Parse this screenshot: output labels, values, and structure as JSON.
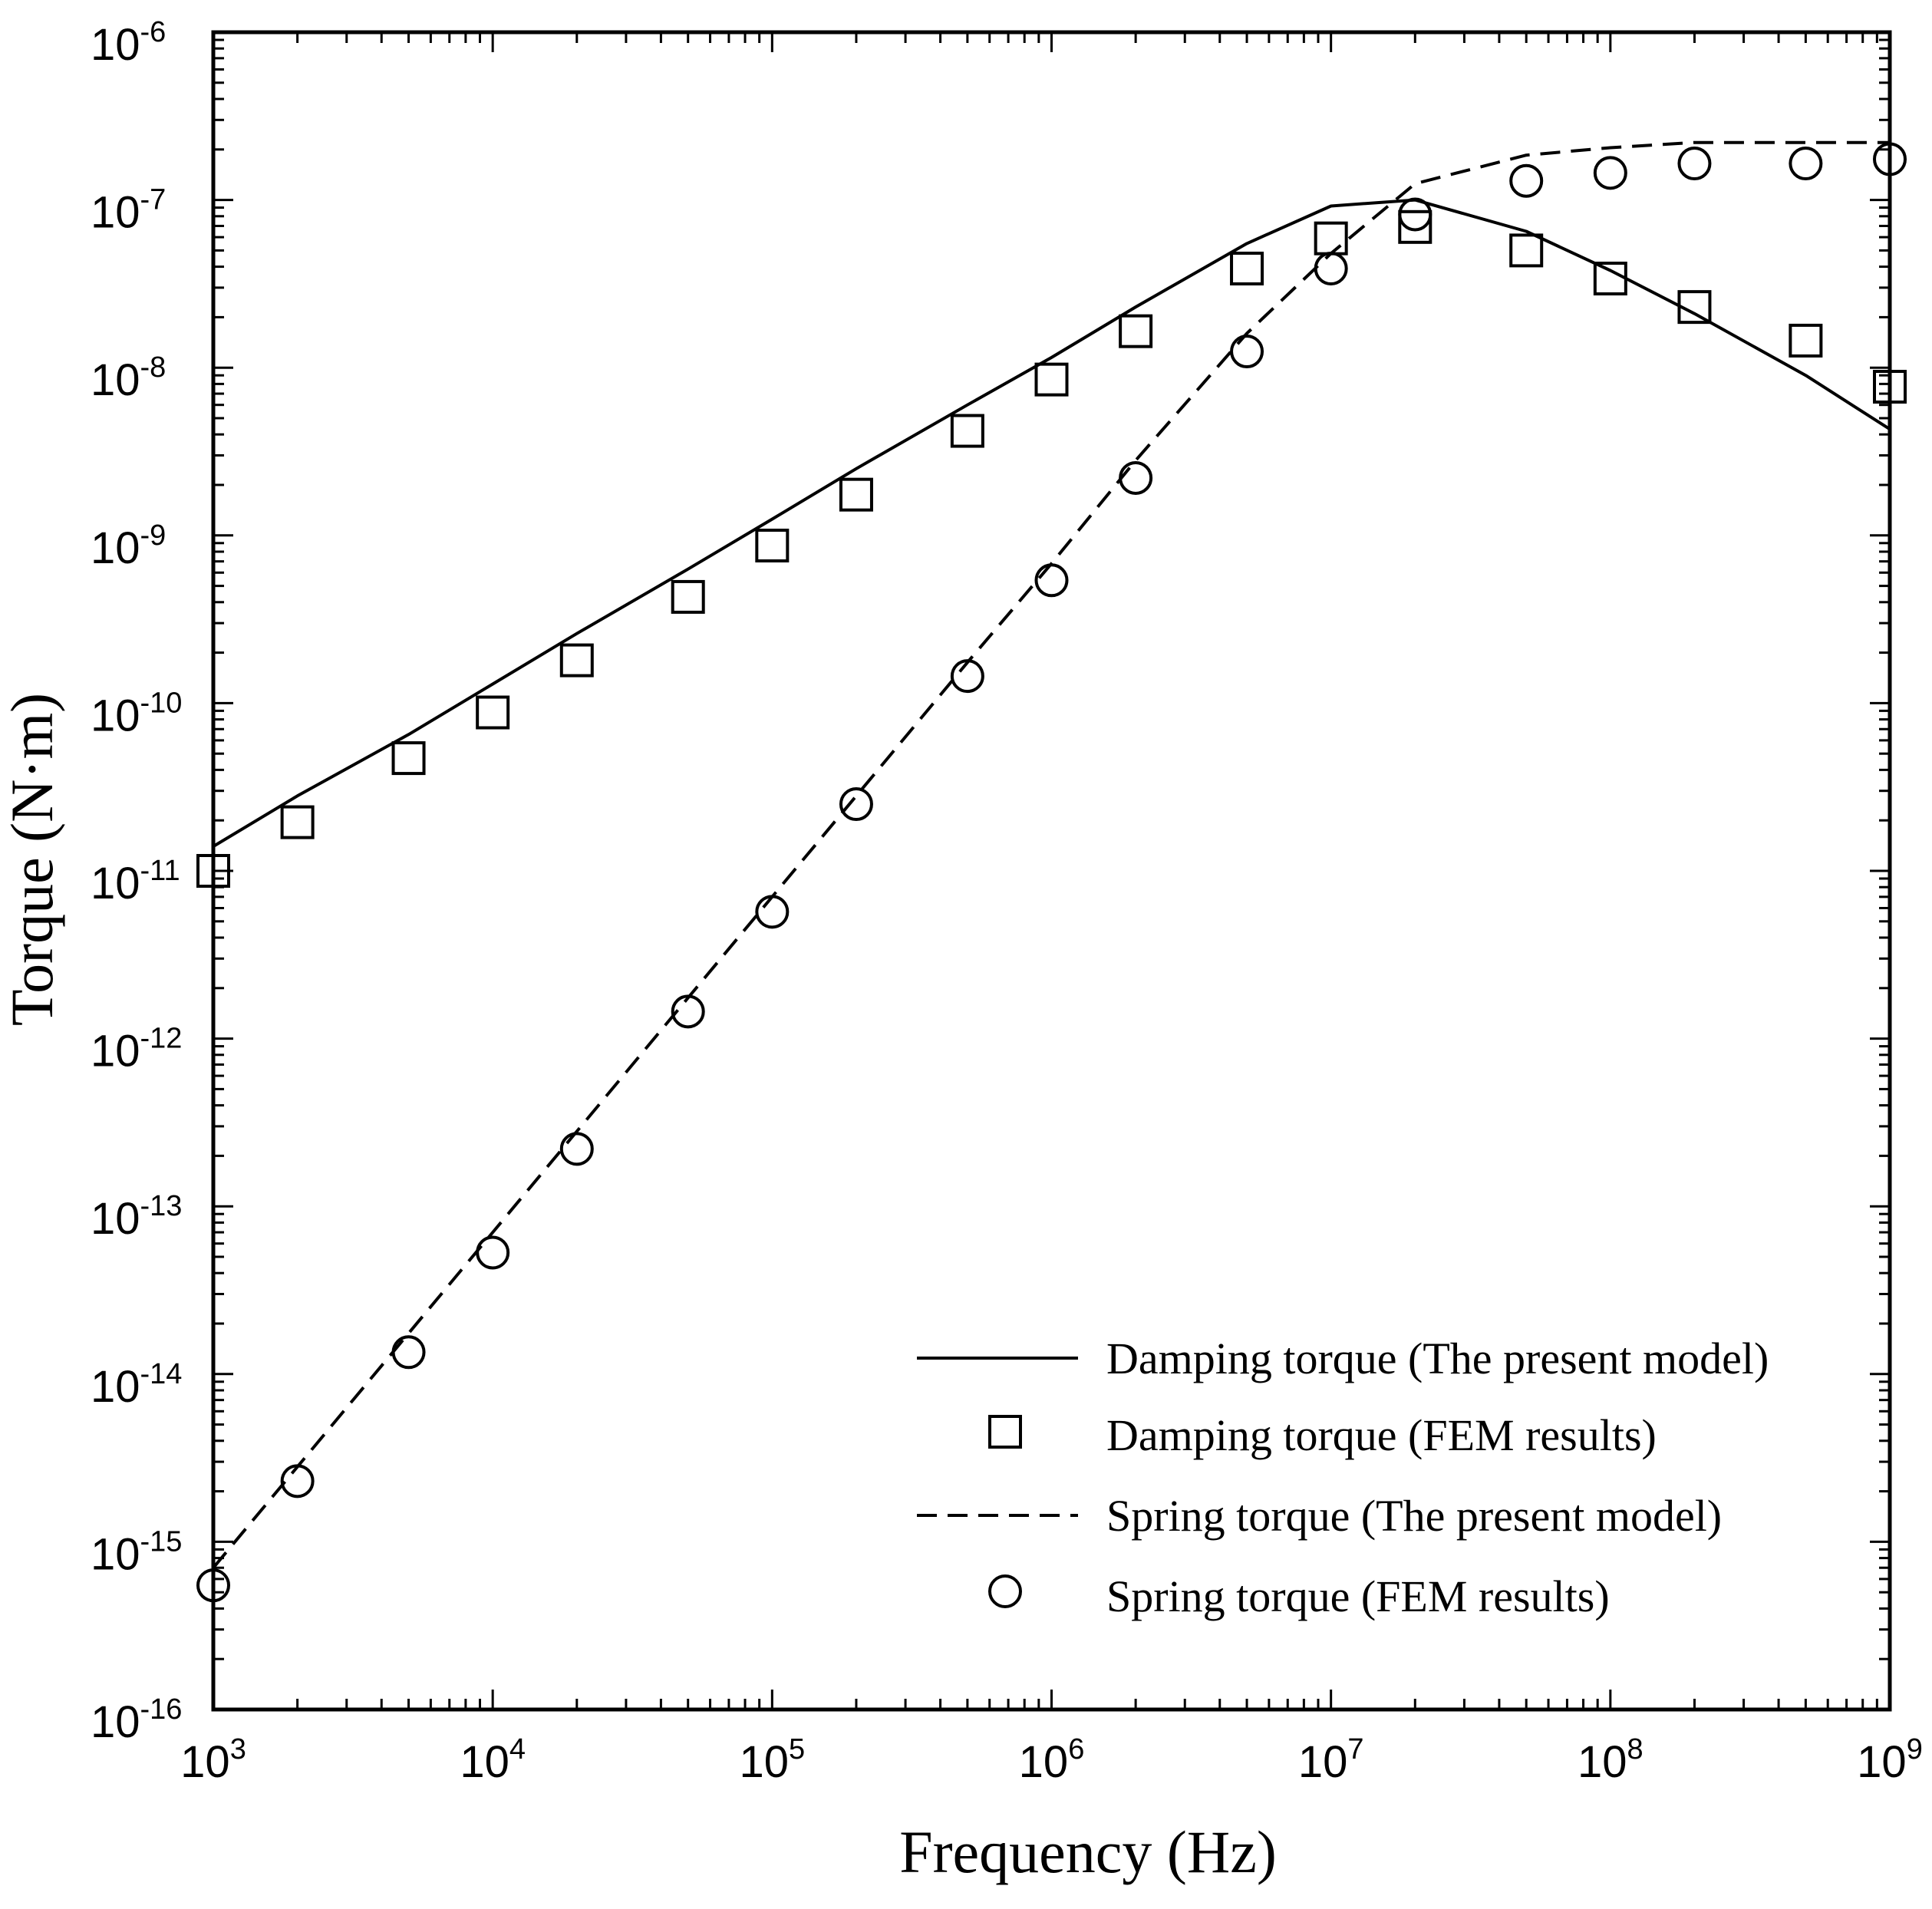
{
  "chart_data": {
    "type": "line",
    "xscale": "log",
    "yscale": "log",
    "xlabel": "Frequency (Hz)",
    "ylabel": "Torque (N·m)",
    "xlim": [
      1000,
      1000000000
    ],
    "ylim": [
      1e-16,
      1e-06
    ],
    "x_ticks": [
      {
        "base": "10",
        "exp": "3"
      },
      {
        "base": "10",
        "exp": "4"
      },
      {
        "base": "10",
        "exp": "5"
      },
      {
        "base": "10",
        "exp": "6"
      },
      {
        "base": "10",
        "exp": "7"
      },
      {
        "base": "10",
        "exp": "8"
      },
      {
        "base": "10",
        "exp": "9"
      }
    ],
    "y_ticks": [
      {
        "base": "10",
        "exp": "-16"
      },
      {
        "base": "10",
        "exp": "-15"
      },
      {
        "base": "10",
        "exp": "-14"
      },
      {
        "base": "10",
        "exp": "-13"
      },
      {
        "base": "10",
        "exp": "-12"
      },
      {
        "base": "10",
        "exp": "-11"
      },
      {
        "base": "10",
        "exp": "-10"
      },
      {
        "base": "10",
        "exp": "-9"
      },
      {
        "base": "10",
        "exp": "-8"
      },
      {
        "base": "10",
        "exp": "-7"
      },
      {
        "base": "10",
        "exp": "-6"
      }
    ],
    "legend_position": "bottom-right",
    "series": [
      {
        "name": "Damping torque (The present model)",
        "style": "solid-line",
        "x": [
          1000,
          2000,
          5000,
          10000,
          20000,
          50000,
          100000,
          200000,
          500000,
          1000000,
          2000000,
          5000000,
          10000000,
          20000000,
          50000000,
          100000000,
          200000000,
          500000000,
          1000000000
        ],
        "y": [
          1.4e-11,
          2.8e-11,
          6.5e-11,
          1.3e-10,
          2.6e-10,
          6.3e-10,
          1.25e-09,
          2.5e-09,
          6e-09,
          1.15e-08,
          2.3e-08,
          5.5e-08,
          9.2e-08,
          1e-07,
          6.5e-08,
          3.8e-08,
          2.1e-08,
          9e-09,
          4.3e-09
        ]
      },
      {
        "name": "Damping torque (FEM results)",
        "style": "square-marker",
        "x": [
          1000,
          2000,
          5000,
          10000,
          20000,
          50000,
          100000,
          200000,
          500000,
          1000000,
          2000000,
          5000000,
          10000000,
          20000000,
          50000000,
          100000000,
          200000000,
          500000000,
          1000000000
        ],
        "y": [
          1e-11,
          1.95e-11,
          4.7e-11,
          8.8e-11,
          1.8e-10,
          4.3e-10,
          8.7e-10,
          1.75e-09,
          4.2e-09,
          8.5e-09,
          1.65e-08,
          3.9e-08,
          5.9e-08,
          6.9e-08,
          5e-08,
          3.4e-08,
          2.3e-08,
          1.45e-08,
          7.7e-09
        ]
      },
      {
        "name": "Spring torque (The present model)",
        "style": "dashed-line",
        "x": [
          1000,
          2000,
          5000,
          10000,
          20000,
          50000,
          100000,
          200000,
          500000,
          1000000,
          2000000,
          5000000,
          10000000,
          20000000,
          50000000,
          100000000,
          200000000,
          500000000,
          1000000000
        ],
        "y": [
          7e-16,
          2.8e-15,
          1.75e-14,
          7e-14,
          2.8e-13,
          1.75e-12,
          7e-12,
          2.8e-11,
          1.75e-10,
          6.8e-10,
          2.8e-09,
          1.6e-08,
          4.8e-08,
          1.25e-07,
          1.85e-07,
          2.05e-07,
          2.2e-07,
          2.2e-07,
          2.2e-07
        ]
      },
      {
        "name": "Spring torque (FEM results)",
        "style": "circle-marker",
        "x": [
          1000,
          2000,
          5000,
          10000,
          20000,
          50000,
          100000,
          200000,
          500000,
          1000000,
          2000000,
          5000000,
          10000000,
          20000000,
          50000000,
          100000000,
          200000000,
          500000000,
          1000000000
        ],
        "y": [
          5.5e-16,
          2.3e-15,
          1.35e-14,
          5.3e-14,
          2.2e-13,
          1.45e-12,
          5.7e-12,
          2.5e-11,
          1.45e-10,
          5.4e-10,
          2.2e-09,
          1.25e-08,
          3.9e-08,
          8.2e-08,
          1.3e-07,
          1.45e-07,
          1.65e-07,
          1.65e-07,
          1.75e-07
        ]
      }
    ]
  }
}
